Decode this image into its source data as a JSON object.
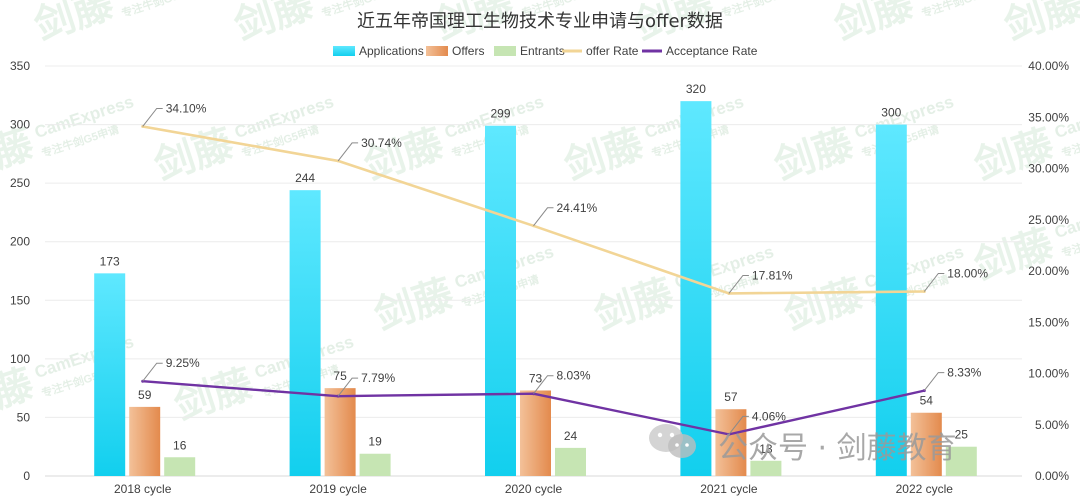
{
  "chart_data": {
    "type": "bar",
    "title": "近五年帝国理工生物技术专业申请与offer数据",
    "categories": [
      "2018 cycle",
      "2019 cycle",
      "2020 cycle",
      "2021 cycle",
      "2022 cycle"
    ],
    "series": [
      {
        "name": "Applications",
        "kind": "bar",
        "axis": "left",
        "values": [
          173,
          244,
          299,
          320,
          300
        ],
        "labels": [
          "173",
          "244",
          "299",
          "320",
          "300"
        ]
      },
      {
        "name": "Offers",
        "kind": "bar",
        "axis": "left",
        "values": [
          59,
          75,
          73,
          57,
          54
        ],
        "labels": [
          "59",
          "75",
          "73",
          "57",
          "54"
        ]
      },
      {
        "name": "Entrants",
        "kind": "bar",
        "axis": "left",
        "values": [
          16,
          19,
          24,
          13,
          25
        ],
        "labels": [
          "16",
          "19",
          "24",
          "13",
          "25"
        ]
      },
      {
        "name": "offer Rate",
        "kind": "line",
        "axis": "right",
        "values": [
          34.1,
          30.74,
          24.41,
          17.81,
          18.0
        ],
        "labels": [
          "34.10%",
          "30.74%",
          "24.41%",
          "17.81%",
          "18.00%"
        ]
      },
      {
        "name": "Acceptance Rate",
        "kind": "line",
        "axis": "right",
        "values": [
          9.25,
          7.79,
          8.03,
          4.06,
          8.33
        ],
        "labels": [
          "9.25%",
          "7.79%",
          "8.03%",
          "4.06%",
          "8.33%"
        ]
      }
    ],
    "y_left": {
      "min": 0,
      "max": 350,
      "ticks": [
        "0",
        "50",
        "100",
        "150",
        "200",
        "250",
        "300",
        "350"
      ]
    },
    "y_right": {
      "min": 0,
      "max": 40,
      "ticks": [
        "0.00%",
        "5.00%",
        "10.00%",
        "15.00%",
        "20.00%",
        "25.00%",
        "30.00%",
        "35.00%",
        "40.00%"
      ]
    },
    "legend_position": "top",
    "grid": true
  },
  "colors": {
    "applications_top": "#5fe8ff",
    "applications_bottom": "#12cfee",
    "offers_light": "#f3c199",
    "offers_dark": "#e38a4d",
    "entrants": "#c6e5b3",
    "offer_rate_line": "#f2d596",
    "acceptance_rate_line": "#7033a3"
  },
  "watermark": {
    "brand_cn": "剑藤",
    "brand_en": "CamExpress",
    "tagline": "专注牛剑G5申请",
    "wechat": "公众号 · 剑藤教育"
  }
}
